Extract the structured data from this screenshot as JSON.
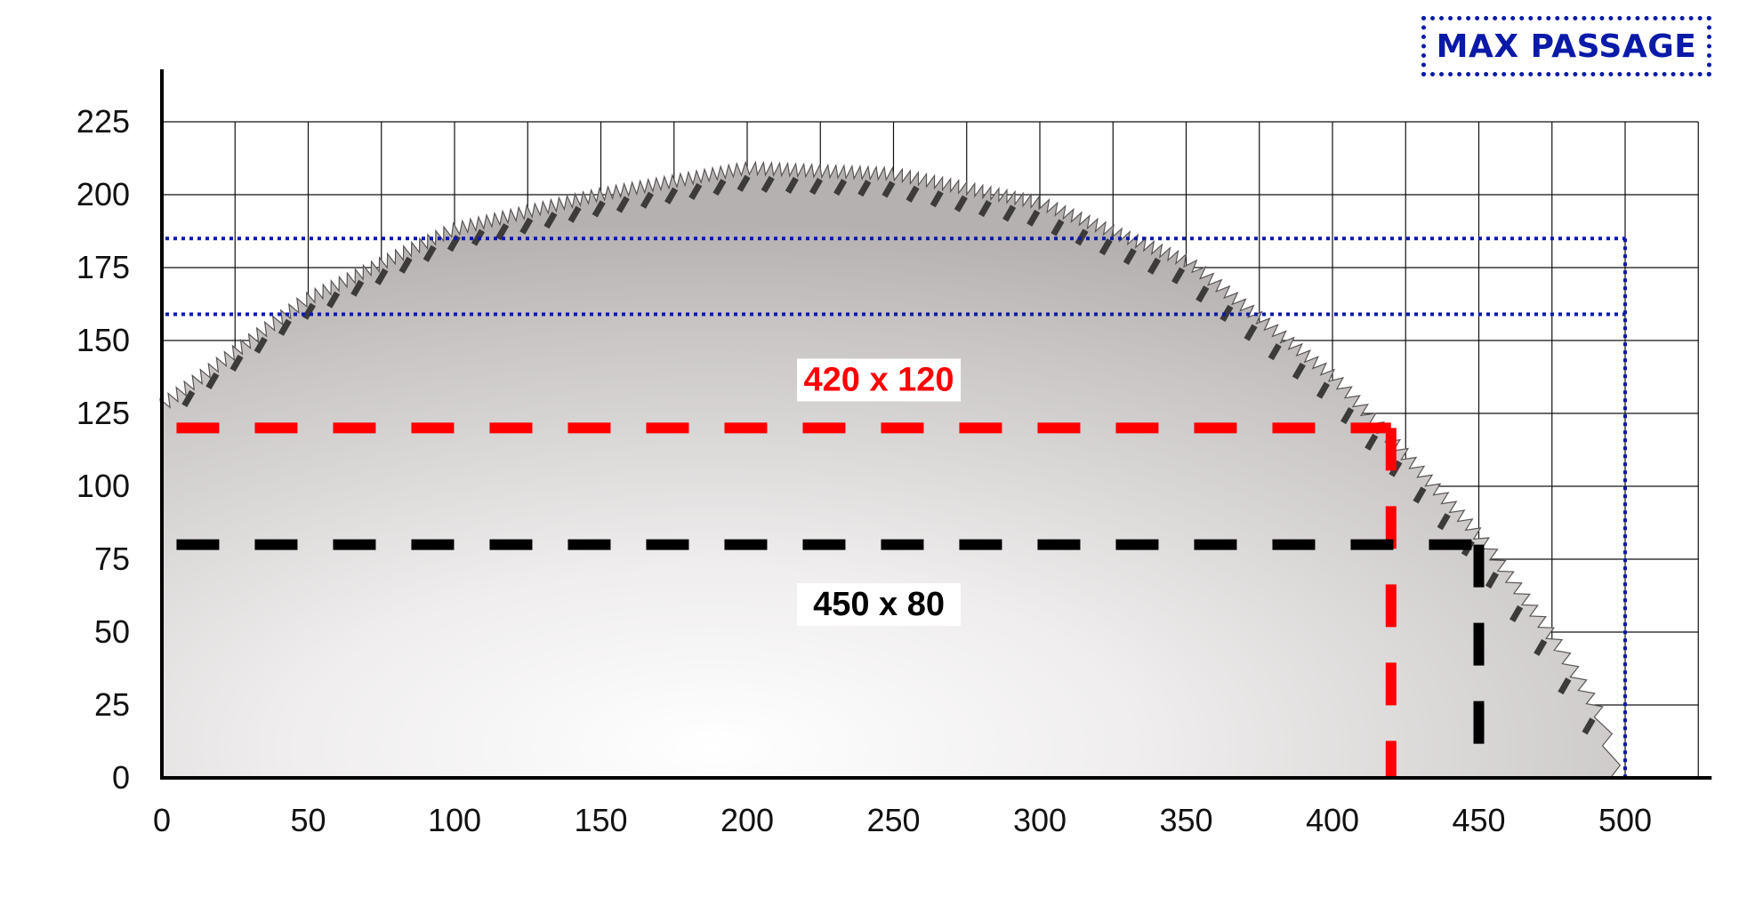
{
  "chart_data": {
    "type": "line",
    "xlim": [
      0,
      525
    ],
    "ylim": [
      0,
      225
    ],
    "x_ticks": [
      "0",
      "50",
      "100",
      "150",
      "200",
      "250",
      "300",
      "350",
      "400",
      "450",
      "500"
    ],
    "y_ticks": [
      "0",
      "25",
      "50",
      "75",
      "100",
      "125",
      "150",
      "175",
      "200",
      "225"
    ],
    "grid": true,
    "legend": {
      "label": "MAX PASSAGE",
      "position": "top-right",
      "color": "#0a1aa8"
    },
    "blade_profile": {
      "x": [
        0,
        50,
        100,
        150,
        200,
        250,
        300,
        350,
        400,
        450,
        475,
        490,
        495
      ],
      "y": [
        125,
        162,
        186,
        198,
        207,
        205,
        195,
        175,
        135,
        80,
        45,
        20,
        0
      ]
    },
    "series": [
      {
        "label": "420 x 120",
        "color": "#ff0000",
        "width": 420,
        "height": 120
      },
      {
        "label": "450 x 80",
        "color": "#000000",
        "width": 450,
        "height": 80
      }
    ],
    "max_passage_lines": [
      {
        "y": 185,
        "x_end": 500
      },
      {
        "y": 159,
        "x_end": 500
      }
    ]
  }
}
